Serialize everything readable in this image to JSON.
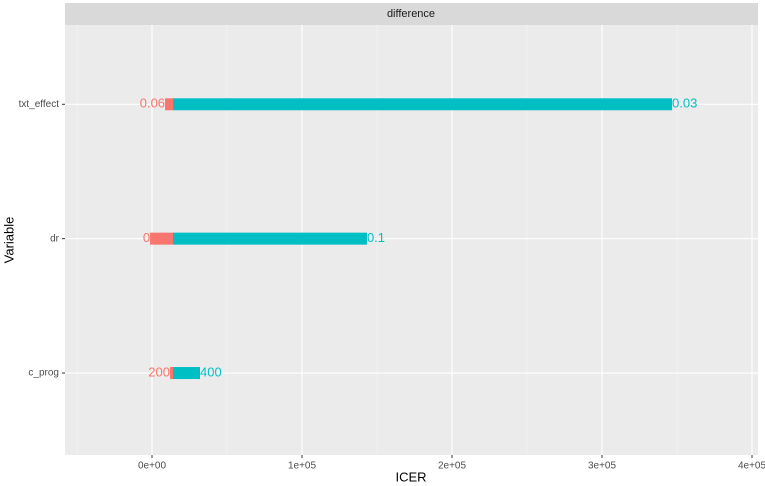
{
  "chart_data": {
    "type": "tornado",
    "strip_label": "difference",
    "x_label": "ICER",
    "y_label": "Variable",
    "categories": [
      "txt_effect",
      "dr",
      "c_prog"
    ],
    "base": 14000,
    "low": {
      "color": "#F8766D",
      "values": [
        8700,
        -1300,
        12000
      ],
      "value_labels": [
        "0.06",
        "0",
        "200"
      ]
    },
    "high": {
      "color": "#00BFC4",
      "values": [
        346700,
        143300,
        32000
      ],
      "value_labels": [
        "0.03",
        "0.1",
        "400"
      ]
    },
    "xlim": [
      -58000,
      404000
    ],
    "xticks": [
      {
        "value": 0,
        "label": "0e+00"
      },
      {
        "value": 100000,
        "label": "1e+05"
      },
      {
        "value": 200000,
        "label": "2e+05"
      },
      {
        "value": 300000,
        "label": "3e+05"
      },
      {
        "value": 400000,
        "label": "4e+05"
      }
    ],
    "grid": true
  }
}
